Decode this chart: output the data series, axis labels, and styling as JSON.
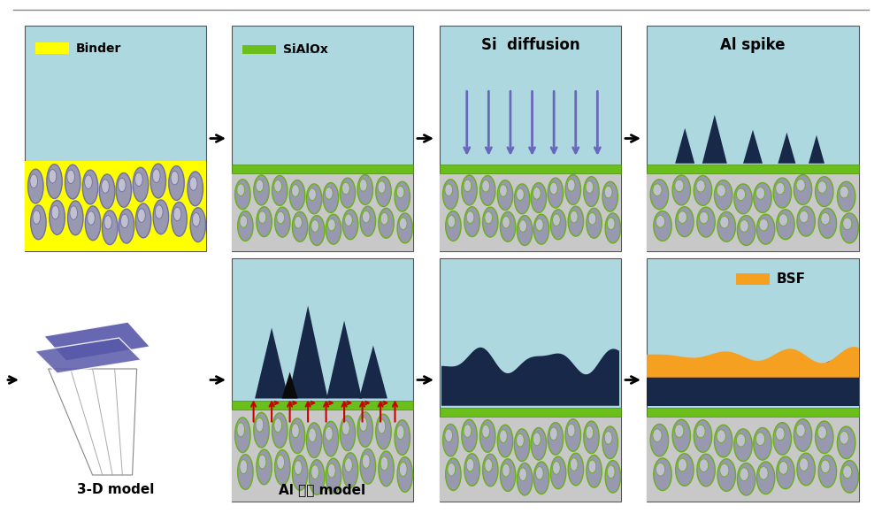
{
  "bg_color": "#ffffff",
  "light_blue": "#aed8e0",
  "yellow": "#ffff00",
  "green": "#6abf1a",
  "dark_green": "#4a8c10",
  "gray_al": "#9898b0",
  "gray_bg": "#c8c8c8",
  "dark_navy": "#182848",
  "orange": "#f5a020",
  "purple_arrow": "#6868bb",
  "red_arrow": "#cc0000",
  "blue_panel": "#5858aa",
  "labels": {
    "binder": "Binder",
    "sialox": "SiAlOx",
    "si_diffusion": "Si  diffusion",
    "al_spike": "Al spike",
    "bsf": "BSF",
    "model_3d": "3-D model",
    "al_model": "Al 침투 model"
  },
  "panels": {
    "p1": [
      28,
      305,
      205,
      255
    ],
    "p2": [
      262,
      305,
      205,
      255
    ],
    "p3": [
      497,
      305,
      205,
      255
    ],
    "p4": [
      731,
      305,
      240,
      255
    ],
    "p5": [
      28,
      22,
      205,
      275
    ],
    "p6": [
      262,
      22,
      205,
      275
    ],
    "p7": [
      497,
      22,
      205,
      275
    ],
    "p8": [
      731,
      22,
      240,
      275
    ]
  }
}
